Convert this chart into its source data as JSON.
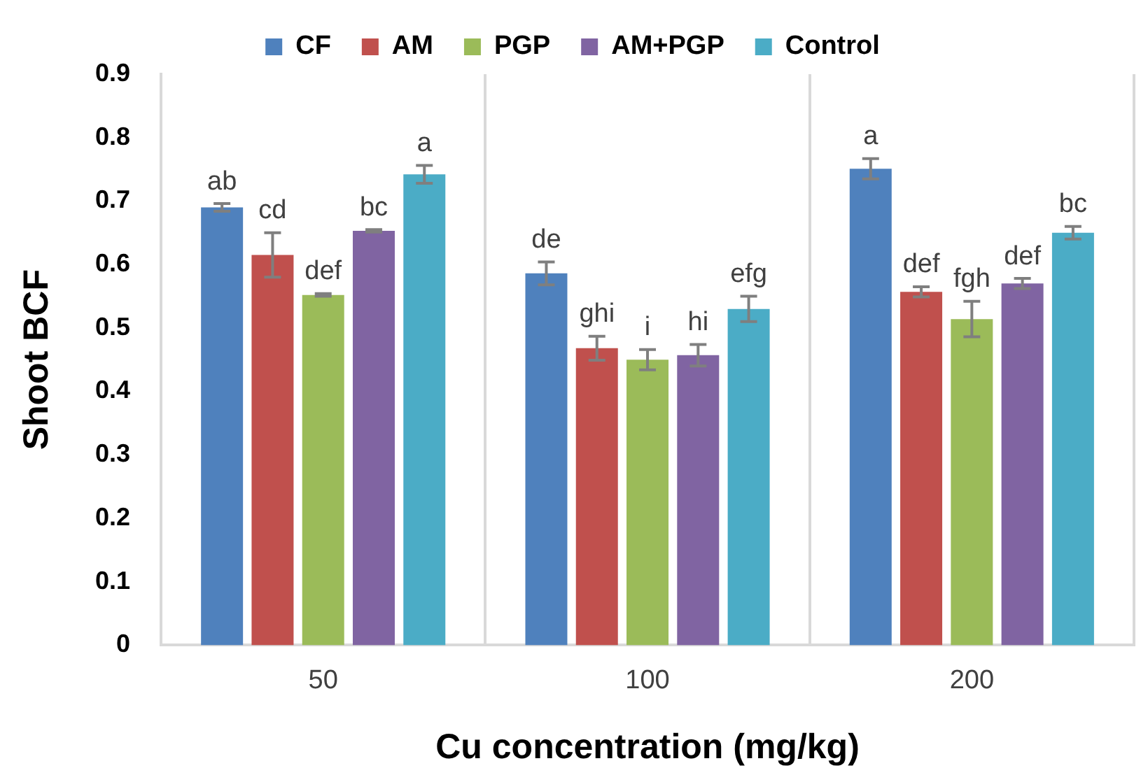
{
  "chart_data": {
    "type": "bar",
    "xlabel": "Cu concentration (mg/kg)",
    "ylabel": "Shoot BCF",
    "categories": [
      "50",
      "100",
      "200"
    ],
    "series": [
      {
        "name": "CF",
        "color": "#4f81bd",
        "values": [
          0.69,
          0.586,
          0.751
        ],
        "errors": [
          0.006,
          0.018,
          0.016
        ],
        "value_labels": [
          "ab",
          "de",
          "a"
        ]
      },
      {
        "name": "AM",
        "color": "#c0504d",
        "values": [
          0.615,
          0.468,
          0.557
        ],
        "errors": [
          0.035,
          0.019,
          0.008
        ],
        "value_labels": [
          "cd",
          "ghi",
          "def"
        ]
      },
      {
        "name": "PGP",
        "color": "#9bbb59",
        "values": [
          0.552,
          0.45,
          0.514
        ],
        "errors": [
          0.002,
          0.016,
          0.028
        ],
        "value_labels": [
          "def",
          "i",
          "fgh"
        ]
      },
      {
        "name": "AM+PGP",
        "color": "#8064a2",
        "values": [
          0.653,
          0.457,
          0.57
        ],
        "errors": [
          0.002,
          0.017,
          0.008
        ],
        "value_labels": [
          "bc",
          "hi",
          "def"
        ]
      },
      {
        "name": "Control",
        "color": "#4bacc6",
        "values": [
          0.742,
          0.53,
          0.65
        ],
        "errors": [
          0.014,
          0.02,
          0.01
        ],
        "value_labels": [
          "a",
          "efg",
          "bc"
        ]
      }
    ],
    "ylim": [
      0,
      0.9
    ],
    "yticks": [
      0,
      0.1,
      0.2,
      0.3,
      0.4,
      0.5,
      0.6,
      0.7,
      0.8,
      0.9
    ],
    "grid": "x",
    "legend": "top"
  }
}
